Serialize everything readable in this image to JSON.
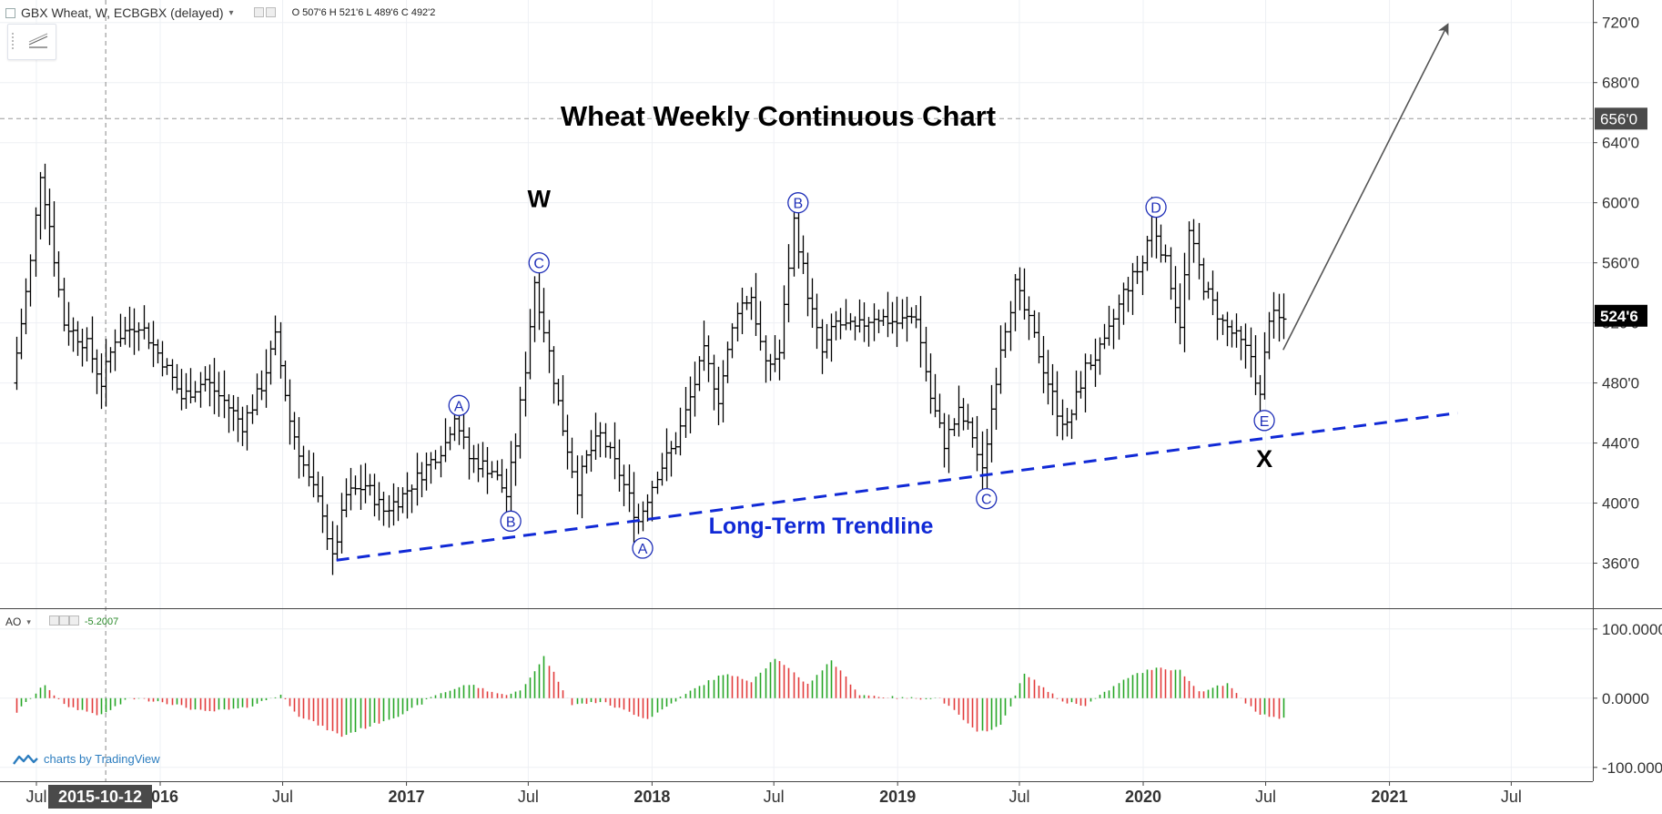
{
  "header": {
    "symbol_line": "GBX Wheat, W, ECBGBX (delayed)",
    "ohlc": "O 507'6 H 521'6 L 489'6 C 492'2"
  },
  "indicator": {
    "name": "AO",
    "value": "-5.2007"
  },
  "branding": {
    "text": "charts by TradingView"
  },
  "crosshair_date": "2015-10-12",
  "colors": {
    "bar": "#000000",
    "ao_up": "#26a626",
    "ao_down": "#e23b3b",
    "wave_label": "#1f2fb8",
    "trendline": "#1029d6",
    "arrow": "#555555"
  },
  "chart_data": {
    "type": "bar",
    "title": "Wheat Weekly Continuous Chart",
    "timeframe": "weekly OHLC",
    "x_ticks": [
      "Jul",
      "2016",
      "Jul",
      "2017",
      "Jul",
      "2018",
      "Jul",
      "2019",
      "Jul",
      "2020",
      "Jul",
      "2021",
      "Jul"
    ],
    "price_axis": {
      "ylim": [
        330,
        735
      ],
      "ticks": [
        "360'0",
        "400'0",
        "440'0",
        "480'0",
        "520'0",
        "560'0",
        "600'0",
        "640'0",
        "680'0",
        "720'0"
      ],
      "last_price_label": "524'6",
      "last_price": 524.75,
      "crosshair_price_label": "656'0",
      "crosshair_price": 656
    },
    "ao_axis": {
      "ylim": [
        -120,
        130
      ],
      "ticks": [
        "100.0000",
        "0.0000",
        "-100.0000"
      ]
    },
    "price_anchors": [
      [
        "2015-06-01",
        480
      ],
      [
        "2015-06-29",
        560
      ],
      [
        "2015-07-13",
        620
      ],
      [
        "2015-07-27",
        585
      ],
      [
        "2015-08-17",
        520
      ],
      [
        "2015-09-21",
        505
      ],
      [
        "2015-10-12",
        480
      ],
      [
        "2015-11-02",
        510
      ],
      [
        "2015-12-07",
        520
      ],
      [
        "2016-01-11",
        495
      ],
      [
        "2016-02-08",
        470
      ],
      [
        "2016-03-14",
        482
      ],
      [
        "2016-04-11",
        468
      ],
      [
        "2016-05-09",
        452
      ],
      [
        "2016-06-06",
        478
      ],
      [
        "2016-06-27",
        510
      ],
      [
        "2016-07-18",
        455
      ],
      [
        "2016-08-15",
        415
      ],
      [
        "2016-09-05",
        395
      ],
      [
        "2016-09-19",
        362
      ],
      [
        "2016-10-10",
        405
      ],
      [
        "2016-11-07",
        412
      ],
      [
        "2016-12-05",
        395
      ],
      [
        "2017-01-02",
        405
      ],
      [
        "2017-02-13",
        428
      ],
      [
        "2017-03-06",
        440
      ],
      [
        "2017-03-20",
        460
      ],
      [
        "2017-04-10",
        430
      ],
      [
        "2017-05-15",
        422
      ],
      [
        "2017-06-05",
        405
      ],
      [
        "2017-06-19",
        440
      ],
      [
        "2017-07-03",
        490
      ],
      [
        "2017-07-17",
        548
      ],
      [
        "2017-08-07",
        500
      ],
      [
        "2017-08-28",
        450
      ],
      [
        "2017-09-18",
        410
      ],
      [
        "2017-10-02",
        430
      ],
      [
        "2017-10-23",
        445
      ],
      [
        "2017-11-20",
        420
      ],
      [
        "2017-12-11",
        395
      ],
      [
        "2017-12-18",
        388
      ],
      [
        "2018-01-15",
        420
      ],
      [
        "2018-02-12",
        440
      ],
      [
        "2018-03-05",
        470
      ],
      [
        "2018-03-26",
        500
      ],
      [
        "2018-04-16",
        470
      ],
      [
        "2018-05-14",
        530
      ],
      [
        "2018-06-04",
        538
      ],
      [
        "2018-06-25",
        490
      ],
      [
        "2018-07-16",
        500
      ],
      [
        "2018-08-06",
        588
      ],
      [
        "2018-08-27",
        540
      ],
      [
        "2018-09-17",
        500
      ],
      [
        "2018-10-08",
        520
      ],
      [
        "2018-11-05",
        515
      ],
      [
        "2018-12-03",
        525
      ],
      [
        "2019-01-07",
        520
      ],
      [
        "2019-02-04",
        525
      ],
      [
        "2019-02-25",
        470
      ],
      [
        "2019-03-18",
        440
      ],
      [
        "2019-04-08",
        460
      ],
      [
        "2019-04-29",
        445
      ],
      [
        "2019-05-13",
        420
      ],
      [
        "2019-05-20",
        442
      ],
      [
        "2019-06-10",
        505
      ],
      [
        "2019-07-01",
        545
      ],
      [
        "2019-07-22",
        520
      ],
      [
        "2019-08-12",
        490
      ],
      [
        "2019-09-02",
        462
      ],
      [
        "2019-09-16",
        450
      ],
      [
        "2019-10-14",
        490
      ],
      [
        "2019-11-11",
        505
      ],
      [
        "2019-12-09",
        540
      ],
      [
        "2020-01-06",
        560
      ],
      [
        "2020-01-20",
        590
      ],
      [
        "2020-02-10",
        560
      ],
      [
        "2020-03-02",
        520
      ],
      [
        "2020-03-16",
        580
      ],
      [
        "2020-04-06",
        545
      ],
      [
        "2020-05-04",
        520
      ],
      [
        "2020-05-25",
        510
      ],
      [
        "2020-06-15",
        498
      ],
      [
        "2020-06-29",
        470
      ],
      [
        "2020-07-13",
        525
      ],
      [
        "2020-07-27",
        522
      ]
    ],
    "ao_anchors": [
      [
        "2015-06-01",
        -20
      ],
      [
        "2015-07-13",
        20
      ],
      [
        "2015-08-10",
        -10
      ],
      [
        "2015-10-05",
        -25
      ],
      [
        "2015-11-16",
        0
      ],
      [
        "2016-01-04",
        -5
      ],
      [
        "2016-03-07",
        -20
      ],
      [
        "2016-05-02",
        -15
      ],
      [
        "2016-06-27",
        5
      ],
      [
        "2016-07-25",
        -25
      ],
      [
        "2016-09-26",
        -55
      ],
      [
        "2016-11-21",
        -35
      ],
      [
        "2017-01-02",
        -20
      ],
      [
        "2017-02-13",
        5
      ],
      [
        "2017-04-03",
        20
      ],
      [
        "2017-05-22",
        5
      ],
      [
        "2017-06-19",
        10
      ],
      [
        "2017-07-24",
        60
      ],
      [
        "2017-09-04",
        -10
      ],
      [
        "2017-10-16",
        -5
      ],
      [
        "2017-12-25",
        -30
      ],
      [
        "2018-02-26",
        10
      ],
      [
        "2018-04-16",
        35
      ],
      [
        "2018-05-28",
        25
      ],
      [
        "2018-07-02",
        58
      ],
      [
        "2018-08-20",
        20
      ],
      [
        "2018-09-24",
        55
      ],
      [
        "2018-11-05",
        5
      ],
      [
        "2019-01-07",
        0
      ],
      [
        "2019-03-04",
        0
      ],
      [
        "2019-04-29",
        -50
      ],
      [
        "2019-06-03",
        -40
      ],
      [
        "2019-07-08",
        35
      ],
      [
        "2019-09-02",
        -5
      ],
      [
        "2019-10-07",
        -10
      ],
      [
        "2019-12-09",
        30
      ],
      [
        "2020-01-20",
        45
      ],
      [
        "2020-02-24",
        40
      ],
      [
        "2020-03-23",
        10
      ],
      [
        "2020-05-04",
        20
      ],
      [
        "2020-06-15",
        -20
      ],
      [
        "2020-07-20",
        -30
      ]
    ],
    "wave_labels": [
      {
        "label": "A",
        "date": "2017-03-20",
        "price": 465
      },
      {
        "label": "B",
        "date": "2017-06-05",
        "price": 388
      },
      {
        "label": "C",
        "date": "2017-07-17",
        "price": 560
      },
      {
        "label": "A",
        "date": "2017-12-18",
        "price": 370
      },
      {
        "label": "B",
        "date": "2018-08-06",
        "price": 600
      },
      {
        "label": "C",
        "date": "2019-05-13",
        "price": 403
      },
      {
        "label": "D",
        "date": "2020-01-20",
        "price": 597
      },
      {
        "label": "E",
        "date": "2020-06-29",
        "price": 455
      }
    ],
    "degree_labels": [
      {
        "label": "W",
        "date": "2017-07-17",
        "price": 603
      },
      {
        "label": "X",
        "date": "2020-06-29",
        "price": 430
      }
    ],
    "annotations": {
      "trendline_label": "Long-Term Trendline",
      "trendline": {
        "start": [
          "2016-09-19",
          362
        ],
        "end": [
          "2021-04-12",
          460
        ]
      },
      "projection_arrow": {
        "start": [
          "2020-07-27",
          502
        ],
        "end": [
          "2021-03-29",
          719
        ]
      }
    }
  }
}
